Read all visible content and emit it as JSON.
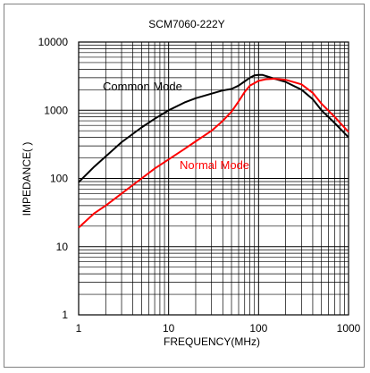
{
  "chart_data": {
    "type": "line",
    "title": "SCM7060-222Y",
    "xlabel": "FREQUENCY(MHz)",
    "ylabel": "IMPEDANCE(  )",
    "xscale": "log",
    "yscale": "log",
    "xlim": [
      1,
      1000
    ],
    "ylim": [
      1,
      10000
    ],
    "xtick_labels": [
      "1",
      "10",
      "100",
      "1000"
    ],
    "ytick_labels": [
      "10000",
      "1000",
      "100",
      "10",
      "1"
    ],
    "grid": true,
    "series": [
      {
        "name": "Common Mode",
        "color": "#000000",
        "x": [
          1,
          1.5,
          2,
          3,
          5,
          7,
          10,
          15,
          20,
          30,
          40,
          50,
          60,
          70,
          80,
          90,
          100,
          110,
          150,
          200,
          300,
          400,
          500,
          700,
          1000
        ],
        "y": [
          88,
          150,
          210,
          340,
          560,
          750,
          1000,
          1300,
          1500,
          1750,
          1950,
          2050,
          2300,
          2650,
          3000,
          3250,
          3300,
          3300,
          2900,
          2600,
          2000,
          1450,
          1000,
          650,
          400
        ]
      },
      {
        "name": "Normal Mode",
        "color": "#ff0000",
        "x": [
          1,
          1.5,
          2,
          3,
          5,
          7,
          10,
          15,
          20,
          30,
          40,
          50,
          60,
          70,
          80,
          100,
          120,
          150,
          200,
          300,
          400,
          500,
          700,
          1000
        ],
        "y": [
          19,
          31,
          40,
          60,
          100,
          140,
          190,
          270,
          350,
          500,
          700,
          950,
          1350,
          1850,
          2300,
          2700,
          2850,
          2900,
          2800,
          2400,
          1800,
          1250,
          800,
          480
        ]
      }
    ]
  }
}
